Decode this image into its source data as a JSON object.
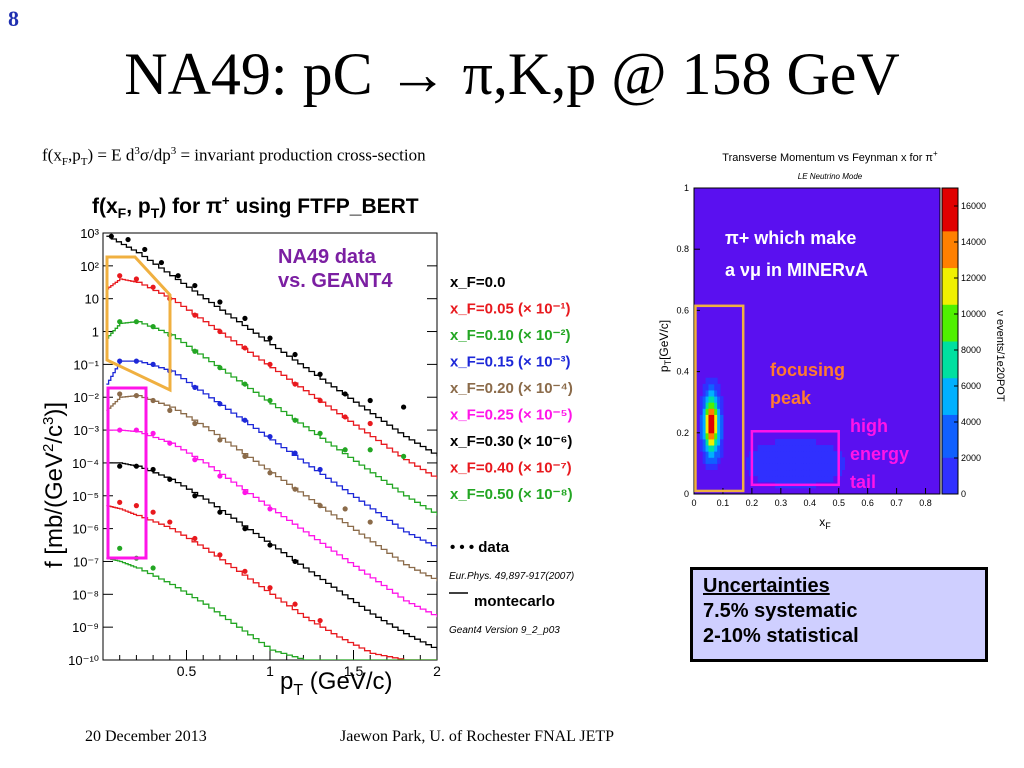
{
  "slide": {
    "number": "8",
    "title": "NA49: pC → π,K,p @ 158 GeV",
    "formula": "f(x_F,p_T) = E d³σ/dp³ = invariant production cross-section",
    "footer_date": "20 December 2013",
    "footer_author": "Jaewon Park, U. of Rochester  FNAL JETP"
  },
  "uncertainties": {
    "title": "Uncertainties",
    "systematic": "7.5% systematic",
    "statistical": "2-10% statistical"
  },
  "colors": {
    "black": "#000000",
    "red": "#e8191e",
    "green": "#23a623",
    "blue": "#1d28d8",
    "brown": "#8b6b4a",
    "magenta": "#ff14e8",
    "orange": "#f0b040",
    "purple": "#7b1fa2"
  },
  "chart_data": [
    {
      "type": "line",
      "title": "f(x_F, p_T) for π⁺ using FTFP_BERT",
      "xlabel": "p_T (GeV/c)",
      "ylabel": "f [mb/(GeV²/c³)]",
      "xlim": [
        0,
        2
      ],
      "ylim_log10": [
        -10,
        3
      ],
      "log_y": true,
      "x_ticks": [
        "0.5",
        "1",
        "1.5",
        "2"
      ],
      "y_ticks": [
        "10³",
        "10²",
        "10",
        "1",
        "10⁻¹",
        "10⁻²",
        "10⁻³",
        "10⁻⁴",
        "10⁻⁵",
        "10⁻⁶",
        "10⁻⁷",
        "10⁻⁸",
        "10⁻⁹",
        "10⁻¹⁰"
      ],
      "annotation": "NA49 data vs. GEANT4",
      "legend": [
        {
          "label": "x_F=0.0",
          "color": "#000000"
        },
        {
          "label": "x_F=0.05 (× 10⁻¹)",
          "color": "#e8191e"
        },
        {
          "label": "x_F=0.10 (× 10⁻²)",
          "color": "#23a623"
        },
        {
          "label": "x_F=0.15 (× 10⁻³)",
          "color": "#1d28d8"
        },
        {
          "label": "x_F=0.20 (× 10⁻⁴)",
          "color": "#8b6b4a"
        },
        {
          "label": "x_F=0.25 (× 10⁻⁵)",
          "color": "#ff14e8"
        },
        {
          "label": "x_F=0.30 (× 10⁻⁶)",
          "color": "#000000"
        },
        {
          "label": "x_F=0.40 (× 10⁻⁷)",
          "color": "#e8191e"
        },
        {
          "label": "x_F=0.50 (× 10⁻⁸)",
          "color": "#23a623"
        }
      ],
      "legend_data": "• • • data",
      "legend_mc": "montecarlo",
      "ref_data": "Eur.Phys. 49,897-917(2007)",
      "ref_mc": "Geant4 Version 9_2_p03",
      "series": [
        {
          "name": "x_F=0.0",
          "color": "#000000",
          "mc": {
            "x": [
              0.02,
              0.2,
              0.4,
              0.6,
              0.8,
              1.0,
              1.2,
              1.4,
              1.6,
              1.8,
              2.0
            ],
            "log_y": [
              2.9,
              2.4,
              1.7,
              1.0,
              0.3,
              -0.4,
              -1.1,
              -1.8,
              -2.5,
              -3.2,
              -3.8
            ]
          },
          "data": {
            "x": [
              0.05,
              0.15,
              0.25,
              0.35,
              0.45,
              0.55,
              0.7,
              0.85,
              1.0,
              1.15,
              1.3,
              1.45,
              1.6,
              1.8
            ],
            "log_y": [
              2.9,
              2.8,
              2.5,
              2.1,
              1.7,
              1.4,
              0.9,
              0.4,
              -0.2,
              -0.7,
              -1.3,
              -1.9,
              -2.1,
              -2.3
            ]
          }
        },
        {
          "name": "x_F=0.05 (× 10⁻¹)",
          "color": "#e8191e",
          "mc": {
            "x": [
              0.02,
              0.1,
              0.2,
              0.4,
              0.6,
              0.8,
              1.0,
              1.2,
              1.4,
              1.6,
              1.8,
              2.0
            ],
            "log_y": [
              1.3,
              1.6,
              1.5,
              1.0,
              0.3,
              -0.4,
              -1.1,
              -1.8,
              -2.5,
              -3.2,
              -3.9,
              -4.5
            ]
          },
          "data": {
            "x": [
              0.1,
              0.2,
              0.3,
              0.4,
              0.55,
              0.7,
              0.85,
              1.0,
              1.15,
              1.3,
              1.45,
              1.6
            ],
            "log_y": [
              1.7,
              1.6,
              1.35,
              1.0,
              0.5,
              0.0,
              -0.5,
              -1.0,
              -1.6,
              -2.1,
              -2.6,
              -2.8
            ]
          }
        },
        {
          "name": "x_F=0.10 (× 10⁻²)",
          "color": "#23a623",
          "mc": {
            "x": [
              0.02,
              0.1,
              0.2,
              0.4,
              0.6,
              0.8,
              1.0,
              1.2,
              1.4,
              1.6,
              1.8,
              2.0
            ],
            "log_y": [
              -0.2,
              0.25,
              0.3,
              -0.1,
              -0.8,
              -1.5,
              -2.2,
              -2.9,
              -3.6,
              -4.3,
              -5.0,
              -5.6
            ]
          },
          "data": {
            "x": [
              0.1,
              0.2,
              0.3,
              0.4,
              0.55,
              0.7,
              0.85,
              1.0,
              1.15,
              1.3,
              1.45,
              1.6,
              1.8
            ],
            "log_y": [
              0.3,
              0.3,
              0.15,
              -0.1,
              -0.6,
              -1.1,
              -1.6,
              -2.1,
              -2.7,
              -3.1,
              -3.6,
              -3.6,
              -3.8
            ]
          }
        },
        {
          "name": "x_F=0.15 (× 10⁻³)",
          "color": "#1d28d8",
          "mc": {
            "x": [
              0.02,
              0.1,
              0.2,
              0.4,
              0.6,
              0.8,
              1.0,
              1.2,
              1.4,
              1.6,
              1.8,
              2.0
            ],
            "log_y": [
              -1.6,
              -0.9,
              -0.9,
              -1.2,
              -1.9,
              -2.6,
              -3.3,
              -4.0,
              -4.7,
              -5.4,
              -6.1,
              -6.6
            ]
          },
          "data": {
            "x": [
              0.1,
              0.2,
              0.3,
              0.4,
              0.55,
              0.7,
              0.85,
              1.0,
              1.15,
              1.3
            ],
            "log_y": [
              -0.9,
              -0.9,
              -1.0,
              -1.2,
              -1.7,
              -2.2,
              -2.7,
              -3.2,
              -3.7,
              -4.2
            ]
          }
        },
        {
          "name": "x_F=0.20 (× 10⁻⁴)",
          "color": "#8b6b4a",
          "mc": {
            "x": [
              0.02,
              0.1,
              0.2,
              0.4,
              0.6,
              0.8,
              1.0,
              1.2,
              1.4,
              1.6,
              1.8,
              2.0
            ],
            "log_y": [
              -2.4,
              -2.0,
              -1.95,
              -2.3,
              -2.9,
              -3.6,
              -4.3,
              -5.0,
              -5.7,
              -6.4,
              -7.1,
              -7.6
            ]
          },
          "data": {
            "x": [
              0.1,
              0.2,
              0.3,
              0.4,
              0.55,
              0.7,
              0.85,
              1.0,
              1.15,
              1.3,
              1.45,
              1.6
            ],
            "log_y": [
              -1.9,
              -1.95,
              -2.1,
              -2.4,
              -2.8,
              -3.3,
              -3.8,
              -4.3,
              -4.8,
              -5.3,
              -5.4,
              -5.8
            ]
          }
        },
        {
          "name": "x_F=0.25 (× 10⁻⁵)",
          "color": "#ff14e8",
          "mc": {
            "x": [
              0.02,
              0.1,
              0.2,
              0.4,
              0.6,
              0.8,
              1.0,
              1.2,
              1.4,
              1.6,
              1.8,
              2.0
            ],
            "log_y": [
              -3.0,
              -3.0,
              -3.05,
              -3.4,
              -4.0,
              -4.7,
              -5.4,
              -6.1,
              -6.8,
              -7.5,
              -8.2,
              -8.7
            ]
          },
          "data": {
            "x": [
              0.1,
              0.2,
              0.3,
              0.4,
              0.55,
              0.7,
              0.85,
              1.0
            ],
            "log_y": [
              -3.0,
              -3.0,
              -3.1,
              -3.4,
              -3.9,
              -4.4,
              -4.9,
              -5.4
            ]
          }
        },
        {
          "name": "x_F=0.30 (× 10⁻⁶)",
          "color": "#000000",
          "mc": {
            "x": [
              0.02,
              0.1,
              0.2,
              0.4,
              0.6,
              0.8,
              1.0,
              1.2,
              1.4,
              1.6,
              1.8,
              2.0
            ],
            "log_y": [
              -4.0,
              -4.0,
              -4.1,
              -4.5,
              -5.1,
              -5.8,
              -6.5,
              -7.2,
              -7.9,
              -8.6,
              -9.2,
              -9.7
            ]
          },
          "data": {
            "x": [
              0.1,
              0.2,
              0.3,
              0.4,
              0.55,
              0.7,
              0.85,
              1.0,
              1.15
            ],
            "log_y": [
              -4.1,
              -4.1,
              -4.2,
              -4.5,
              -5.0,
              -5.5,
              -6.0,
              -6.5,
              -7.0
            ]
          }
        },
        {
          "name": "x_F=0.40 (× 10⁻⁷)",
          "color": "#e8191e",
          "mc": {
            "x": [
              0.02,
              0.1,
              0.2,
              0.4,
              0.6,
              0.8,
              1.0,
              1.2,
              1.4,
              1.6,
              1.8,
              2.0
            ],
            "log_y": [
              -5.3,
              -5.4,
              -5.6,
              -6.0,
              -6.6,
              -7.3,
              -8.0,
              -8.7,
              -9.3,
              -9.8,
              -10,
              -10
            ]
          },
          "data": {
            "x": [
              0.1,
              0.2,
              0.3,
              0.4,
              0.55,
              0.7,
              0.85,
              1.0,
              1.15,
              1.3
            ],
            "log_y": [
              -5.2,
              -5.3,
              -5.5,
              -5.8,
              -6.3,
              -6.8,
              -7.3,
              -7.8,
              -8.3,
              -8.8
            ]
          }
        },
        {
          "name": "x_F=0.50 (× 10⁻⁸)",
          "color": "#23a623",
          "mc": {
            "x": [
              0.02,
              0.1,
              0.2,
              0.4,
              0.6,
              0.8,
              1.0,
              1.2,
              1.4,
              1.6,
              1.8,
              2.0
            ],
            "log_y": [
              -6.9,
              -7.0,
              -7.2,
              -7.7,
              -8.3,
              -9.0,
              -9.7,
              -10,
              -10,
              -10,
              -10,
              -10
            ]
          },
          "data": {
            "x": [
              0.1,
              0.2,
              0.3
            ],
            "log_y": [
              -6.6,
              -6.9,
              -7.2
            ]
          }
        }
      ]
    },
    {
      "type": "heatmap",
      "title": "Transverse Momentum vs Feynman x for π⁺",
      "subtitle": "LE Neutrino Mode",
      "xlabel": "x_F",
      "ylabel": "p_T[GeV/c]",
      "zlabel": "ν events/1e20POT",
      "xlim": [
        0,
        0.85
      ],
      "ylim": [
        0,
        1
      ],
      "zlim": [
        0,
        17000
      ],
      "x_ticks": [
        "0",
        "0.1",
        "0.2",
        "0.3",
        "0.4",
        "0.5",
        "0.6",
        "0.7",
        "0.8"
      ],
      "y_ticks": [
        "0",
        "0.2",
        "0.4",
        "0.6",
        "0.8",
        "1"
      ],
      "z_ticks": [
        "0",
        "2000",
        "4000",
        "6000",
        "8000",
        "10000",
        "12000",
        "14000",
        "16000"
      ],
      "peak": {
        "x": 0.06,
        "y": 0.23,
        "value": 16500
      },
      "annotations": {
        "pi_line1": "π+ which make",
        "pi_line2": "a νμ in MINERvA",
        "focusing": "focusing peak",
        "high_energy": "high energy tail"
      }
    }
  ]
}
